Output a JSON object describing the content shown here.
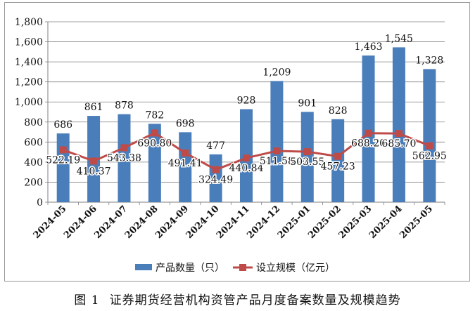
{
  "caption": {
    "figure_number": "图 1",
    "title": "证券期货经营机构资管产品月度备案数量及规模趋势"
  },
  "chart_data": {
    "type": "bar",
    "categories": [
      "2024-05",
      "2024-06",
      "2024-07",
      "2024-08",
      "2024-09",
      "2024-10",
      "2024-11",
      "2024-12",
      "2025-01",
      "2025-02",
      "2025-03",
      "2025-04",
      "2025-05"
    ],
    "series": [
      {
        "name": "产品数量（只）",
        "type": "bar",
        "color": "#4a7ebb",
        "values": [
          686,
          861,
          878,
          782,
          698,
          477,
          928,
          1209,
          901,
          828,
          1463,
          1545,
          1328
        ],
        "labels": [
          "686",
          "861",
          "878",
          "782",
          "698",
          "477",
          "928",
          "1,209",
          "901",
          "828",
          "1,463",
          "1,545",
          "1,328"
        ]
      },
      {
        "name": "设立规模（亿元）",
        "type": "line",
        "color": "#be4b48",
        "values": [
          522.19,
          410.37,
          543.38,
          690.8,
          491.41,
          324.49,
          440.84,
          511.58,
          503.55,
          457.23,
          688.2,
          685.7,
          562.95
        ],
        "labels": [
          "522.19",
          "410.37",
          "543.38",
          "690.80",
          "491.41",
          "324.49",
          "440.84",
          "511.58",
          "503.55",
          "457.23",
          "688.20",
          "685.70",
          "562.95"
        ]
      }
    ],
    "y_ticks": [
      "0",
      "200",
      "400",
      "600",
      "800",
      "1,000",
      "1,200",
      "1,400",
      "1,600",
      "1,800"
    ],
    "ylim": [
      0,
      1800
    ],
    "grid": true,
    "legend_position": "bottom"
  }
}
